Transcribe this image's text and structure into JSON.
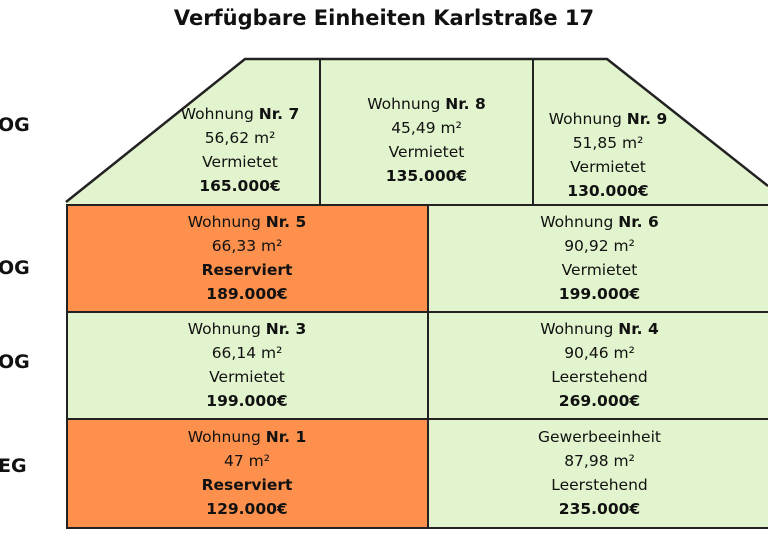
{
  "title": "Verfügbare Einheiten Karlstraße 17",
  "colors": {
    "available": "#e2f4cd",
    "reserved": "#fc904c",
    "border": "#222222"
  },
  "floors": [
    "OG",
    "OG",
    "OG",
    "EG"
  ],
  "units": [
    {
      "name": "Wohnung",
      "nr": "Nr. 7",
      "area": "56,62 m²",
      "status": "Vermietet",
      "price": "165.000€",
      "reserved": false
    },
    {
      "name": "Wohnung",
      "nr": "Nr. 8",
      "area": "45,49 m²",
      "status": "Vermietet",
      "price": "135.000€",
      "reserved": false
    },
    {
      "name": "Wohnung",
      "nr": "Nr. 9",
      "area": "51,85 m²",
      "status": "Vermietet",
      "price": "130.000€",
      "reserved": false
    },
    {
      "name": "Wohnung",
      "nr": "Nr. 5",
      "area": "66,33 m²",
      "status": "Reserviert",
      "price": "189.000€",
      "reserved": true
    },
    {
      "name": "Wohnung",
      "nr": "Nr. 6",
      "area": "90,92 m²",
      "status": "Vermietet",
      "price": "199.000€",
      "reserved": false
    },
    {
      "name": "Wohnung",
      "nr": "Nr. 3",
      "area": "66,14 m²",
      "status": "Vermietet",
      "price": "199.000€",
      "reserved": false
    },
    {
      "name": "Wohnung",
      "nr": "Nr. 4",
      "area": "90,46 m²",
      "status": "Leerstehend",
      "price": "269.000€",
      "reserved": false
    },
    {
      "name": "Wohnung",
      "nr": "Nr. 1",
      "area": "47 m²",
      "status": "Reserviert",
      "price": "129.000€",
      "reserved": true
    },
    {
      "name": "Gewerbeeinheit",
      "nr": "",
      "area": "87,98 m²",
      "status": "Leerstehend",
      "price": "235.000€",
      "reserved": false
    }
  ]
}
